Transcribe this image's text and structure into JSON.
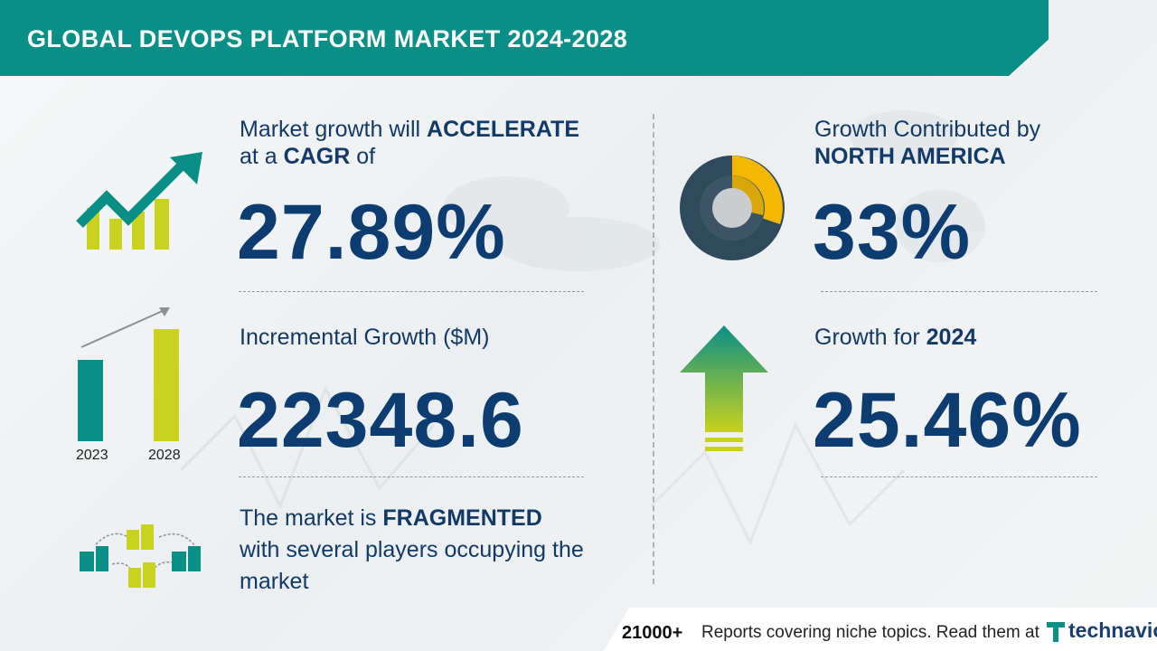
{
  "header": {
    "title": "GLOBAL DEVOPS PLATFORM MARKET 2024-2028"
  },
  "cagr": {
    "line1_prefix": "Market growth will",
    "line1_emph": "ACCELERATE",
    "line2_prefix": "at a",
    "line2_emph": "CAGR",
    "line2_suffix": "of",
    "value": "27.89%",
    "icon": "growth-chart-arrow-icon"
  },
  "incremental": {
    "label": "Incremental Growth ($M)",
    "value": "22348.6",
    "years": [
      "2023",
      "2028"
    ],
    "icon": "bar-comparison-icon"
  },
  "fragmented": {
    "line1_prefix": "The market is",
    "line1_emph": "FRAGMENTED",
    "line2": "with several players occupying the",
    "line3": "market",
    "icon": "buildings-network-icon"
  },
  "region": {
    "line1": "Growth Contributed by",
    "line2": "NORTH AMERICA",
    "value": "33%",
    "icon": "donut-share-icon",
    "share": 0.33
  },
  "yoy": {
    "label_prefix": "Growth for",
    "label_emph": "2024",
    "value": "25.46%",
    "icon": "up-arrow-icon"
  },
  "footer": {
    "count": "21000+",
    "text": "Reports covering niche topics. Read them at",
    "brand": "technavio"
  },
  "colors": {
    "teal": "#0a8f86",
    "navy": "#0d3d70",
    "lime": "#c9d21c",
    "amber": "#f5b800",
    "slate": "#2f4a5c"
  }
}
